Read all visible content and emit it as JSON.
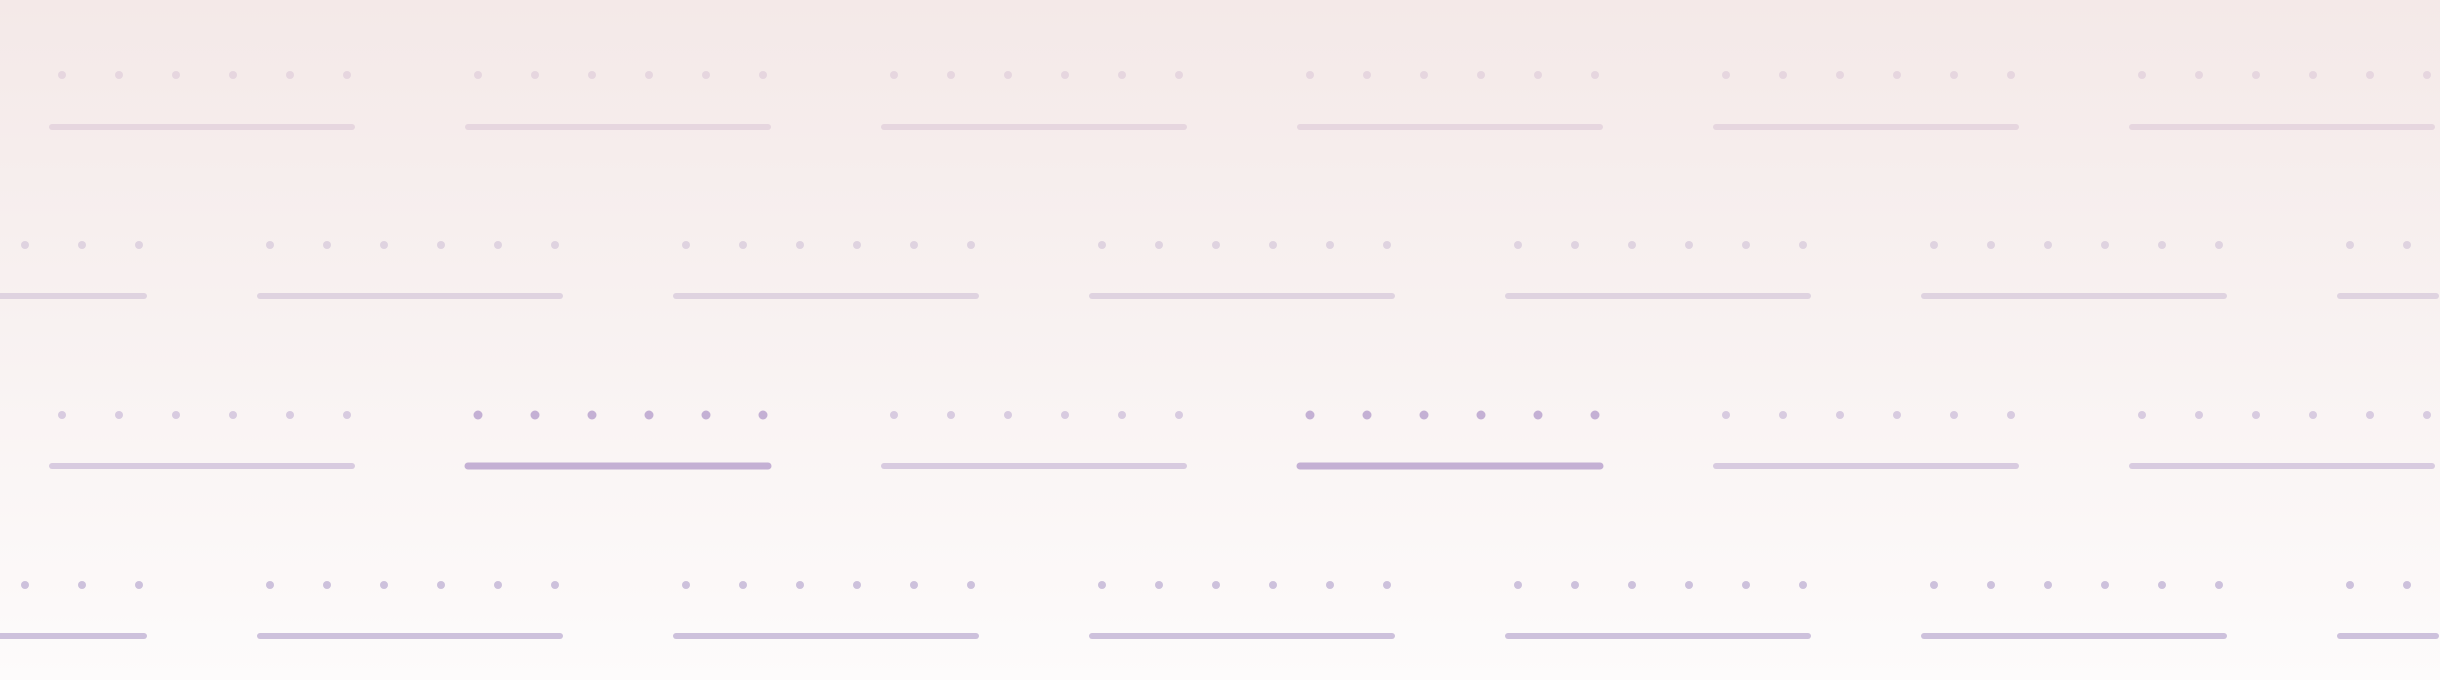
{
  "colors": {
    "background_top": "#f4e9e8",
    "background_bottom": "#fdfbfb",
    "row_1_mark": "#e6d6df",
    "row_2_mark": "#dfd3e0",
    "row_3_mark": "#d8cbe0",
    "row_3_highlight": "#c4b0d4",
    "row_4_mark": "#cdc1dc"
  },
  "pattern": {
    "rows": 4,
    "dots_per_unit": 6,
    "highlighted_row": 3,
    "highlighted_units": [
      2,
      4
    ]
  }
}
